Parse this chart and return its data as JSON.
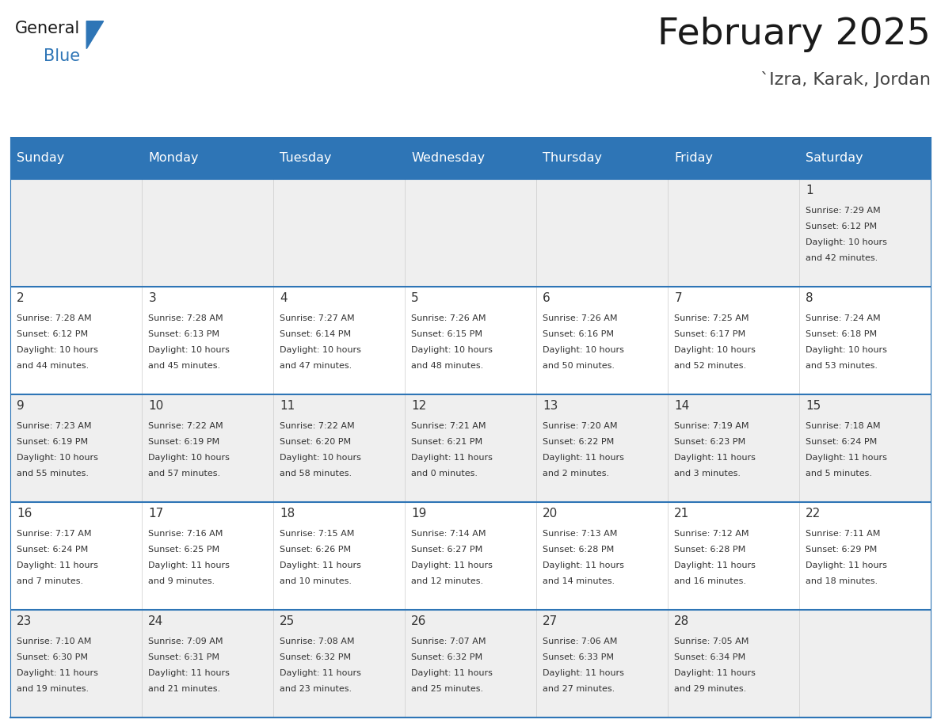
{
  "title": "February 2025",
  "subtitle": "`Izra, Karak, Jordan",
  "days_of_week": [
    "Sunday",
    "Monday",
    "Tuesday",
    "Wednesday",
    "Thursday",
    "Friday",
    "Saturday"
  ],
  "header_bg": "#2E75B6",
  "header_text": "#FFFFFF",
  "row_bg_odd": "#EFEFEF",
  "row_bg_even": "#FFFFFF",
  "border_color": "#2E75B6",
  "title_color": "#1a1a1a",
  "subtitle_color": "#444444",
  "day_num_color": "#333333",
  "cell_text_color": "#333333",
  "calendar_data": {
    "1": {
      "sunrise": "7:29 AM",
      "sunset": "6:12 PM",
      "daylight": "10 hours\nand 42 minutes."
    },
    "2": {
      "sunrise": "7:28 AM",
      "sunset": "6:12 PM",
      "daylight": "10 hours\nand 44 minutes."
    },
    "3": {
      "sunrise": "7:28 AM",
      "sunset": "6:13 PM",
      "daylight": "10 hours\nand 45 minutes."
    },
    "4": {
      "sunrise": "7:27 AM",
      "sunset": "6:14 PM",
      "daylight": "10 hours\nand 47 minutes."
    },
    "5": {
      "sunrise": "7:26 AM",
      "sunset": "6:15 PM",
      "daylight": "10 hours\nand 48 minutes."
    },
    "6": {
      "sunrise": "7:26 AM",
      "sunset": "6:16 PM",
      "daylight": "10 hours\nand 50 minutes."
    },
    "7": {
      "sunrise": "7:25 AM",
      "sunset": "6:17 PM",
      "daylight": "10 hours\nand 52 minutes."
    },
    "8": {
      "sunrise": "7:24 AM",
      "sunset": "6:18 PM",
      "daylight": "10 hours\nand 53 minutes."
    },
    "9": {
      "sunrise": "7:23 AM",
      "sunset": "6:19 PM",
      "daylight": "10 hours\nand 55 minutes."
    },
    "10": {
      "sunrise": "7:22 AM",
      "sunset": "6:19 PM",
      "daylight": "10 hours\nand 57 minutes."
    },
    "11": {
      "sunrise": "7:22 AM",
      "sunset": "6:20 PM",
      "daylight": "10 hours\nand 58 minutes."
    },
    "12": {
      "sunrise": "7:21 AM",
      "sunset": "6:21 PM",
      "daylight": "11 hours\nand 0 minutes."
    },
    "13": {
      "sunrise": "7:20 AM",
      "sunset": "6:22 PM",
      "daylight": "11 hours\nand 2 minutes."
    },
    "14": {
      "sunrise": "7:19 AM",
      "sunset": "6:23 PM",
      "daylight": "11 hours\nand 3 minutes."
    },
    "15": {
      "sunrise": "7:18 AM",
      "sunset": "6:24 PM",
      "daylight": "11 hours\nand 5 minutes."
    },
    "16": {
      "sunrise": "7:17 AM",
      "sunset": "6:24 PM",
      "daylight": "11 hours\nand 7 minutes."
    },
    "17": {
      "sunrise": "7:16 AM",
      "sunset": "6:25 PM",
      "daylight": "11 hours\nand 9 minutes."
    },
    "18": {
      "sunrise": "7:15 AM",
      "sunset": "6:26 PM",
      "daylight": "11 hours\nand 10 minutes."
    },
    "19": {
      "sunrise": "7:14 AM",
      "sunset": "6:27 PM",
      "daylight": "11 hours\nand 12 minutes."
    },
    "20": {
      "sunrise": "7:13 AM",
      "sunset": "6:28 PM",
      "daylight": "11 hours\nand 14 minutes."
    },
    "21": {
      "sunrise": "7:12 AM",
      "sunset": "6:28 PM",
      "daylight": "11 hours\nand 16 minutes."
    },
    "22": {
      "sunrise": "7:11 AM",
      "sunset": "6:29 PM",
      "daylight": "11 hours\nand 18 minutes."
    },
    "23": {
      "sunrise": "7:10 AM",
      "sunset": "6:30 PM",
      "daylight": "11 hours\nand 19 minutes."
    },
    "24": {
      "sunrise": "7:09 AM",
      "sunset": "6:31 PM",
      "daylight": "11 hours\nand 21 minutes."
    },
    "25": {
      "sunrise": "7:08 AM",
      "sunset": "6:32 PM",
      "daylight": "11 hours\nand 23 minutes."
    },
    "26": {
      "sunrise": "7:07 AM",
      "sunset": "6:32 PM",
      "daylight": "11 hours\nand 25 minutes."
    },
    "27": {
      "sunrise": "7:06 AM",
      "sunset": "6:33 PM",
      "daylight": "11 hours\nand 27 minutes."
    },
    "28": {
      "sunrise": "7:05 AM",
      "sunset": "6:34 PM",
      "daylight": "11 hours\nand 29 minutes."
    }
  },
  "weeks": [
    [
      null,
      null,
      null,
      null,
      null,
      null,
      1
    ],
    [
      2,
      3,
      4,
      5,
      6,
      7,
      8
    ],
    [
      9,
      10,
      11,
      12,
      13,
      14,
      15
    ],
    [
      16,
      17,
      18,
      19,
      20,
      21,
      22
    ],
    [
      23,
      24,
      25,
      26,
      27,
      28,
      null
    ]
  ],
  "logo_general_color": "#1a1a1a",
  "logo_blue_color": "#2E75B6",
  "logo_triangle_color": "#2E75B6"
}
